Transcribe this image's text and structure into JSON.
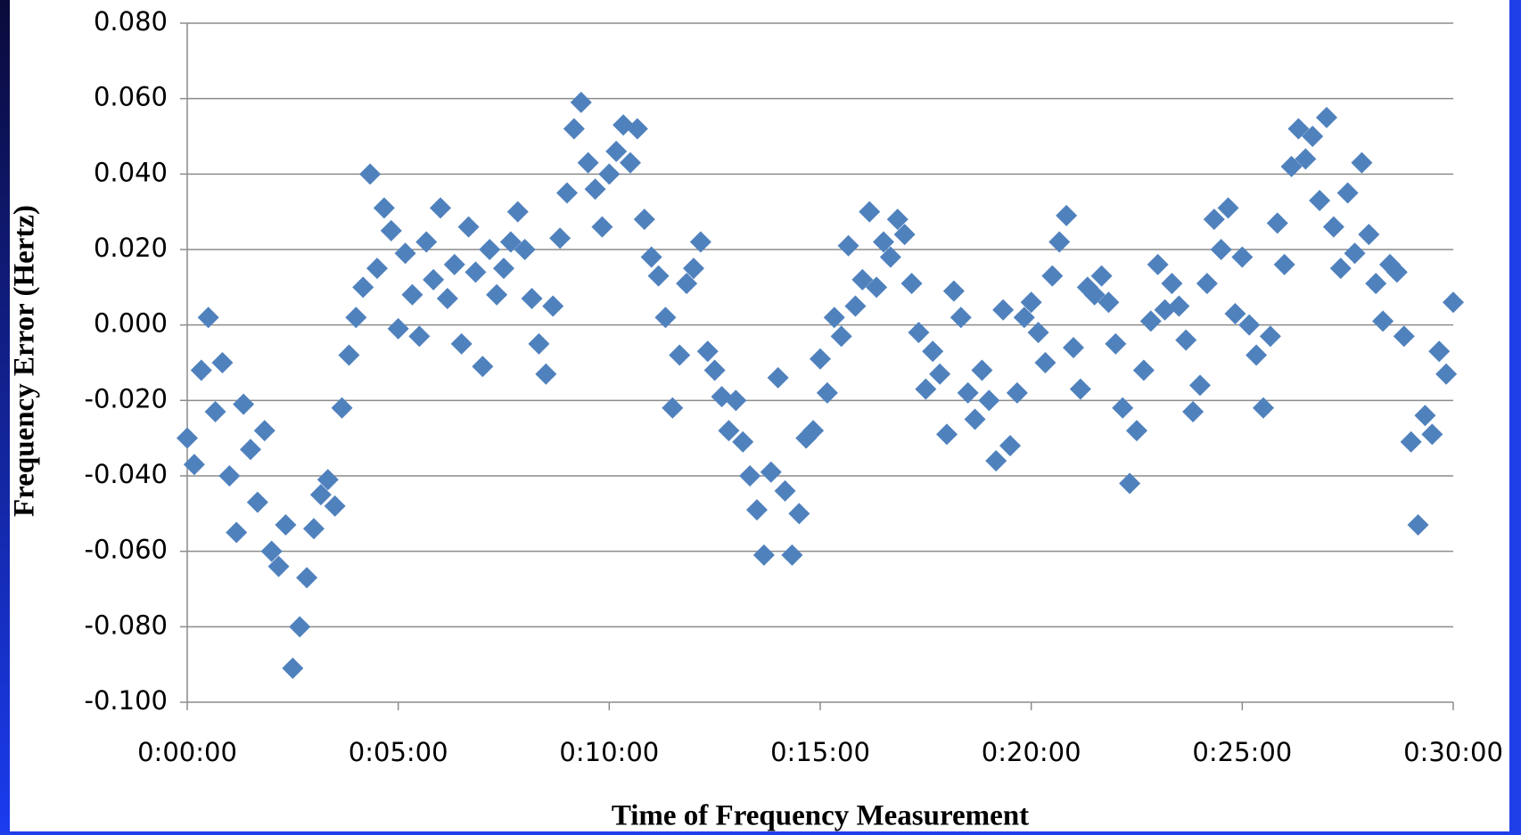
{
  "chart_data": {
    "type": "scatter",
    "xlabel": "Time of Frequency Measurement",
    "ylabel": "Frequency Error (Hertz)",
    "color": "#4f81bd",
    "grid": true,
    "xlim": [
      0,
      1800
    ],
    "xticks": [
      {
        "value": 0,
        "label": "0:00:00"
      },
      {
        "value": 300,
        "label": "0:05:00"
      },
      {
        "value": 600,
        "label": "0:10:00"
      },
      {
        "value": 900,
        "label": "0:15:00"
      },
      {
        "value": 1200,
        "label": "0:20:00"
      },
      {
        "value": 1500,
        "label": "0:25:00"
      },
      {
        "value": 1800,
        "label": "0:30:00"
      }
    ],
    "ylim": [
      -0.1,
      0.08
    ],
    "yticks": [
      {
        "value": -0.1,
        "label": "-0.100"
      },
      {
        "value": -0.08,
        "label": "-0.080"
      },
      {
        "value": -0.06,
        "label": "-0.060"
      },
      {
        "value": -0.04,
        "label": "-0.040"
      },
      {
        "value": -0.02,
        "label": "-0.020"
      },
      {
        "value": 0,
        "label": "0.000"
      },
      {
        "value": 0.02,
        "label": "0.020"
      },
      {
        "value": 0.04,
        "label": "0.040"
      },
      {
        "value": 0.06,
        "label": "0.060"
      },
      {
        "value": 0.08,
        "label": "0.080"
      }
    ],
    "x": [
      0,
      10,
      20,
      30,
      40,
      50,
      60,
      70,
      80,
      90,
      100,
      110,
      120,
      130,
      140,
      150,
      160,
      170,
      180,
      190,
      200,
      210,
      220,
      230,
      240,
      250,
      260,
      270,
      280,
      290,
      300,
      310,
      320,
      330,
      340,
      350,
      360,
      370,
      380,
      390,
      400,
      410,
      420,
      430,
      440,
      450,
      460,
      470,
      480,
      490,
      500,
      510,
      520,
      530,
      540,
      550,
      560,
      570,
      580,
      590,
      600,
      610,
      620,
      630,
      640,
      650,
      660,
      670,
      680,
      690,
      700,
      710,
      720,
      730,
      740,
      750,
      760,
      770,
      780,
      790,
      800,
      810,
      820,
      830,
      840,
      850,
      860,
      870,
      880,
      890,
      900,
      910,
      920,
      930,
      940,
      950,
      960,
      970,
      980,
      990,
      1000,
      1010,
      1020,
      1030,
      1040,
      1050,
      1060,
      1070,
      1080,
      1090,
      1100,
      1110,
      1120,
      1130,
      1140,
      1150,
      1160,
      1170,
      1180,
      1190,
      1200,
      1210,
      1220,
      1230,
      1240,
      1250,
      1260,
      1270,
      1280,
      1290,
      1300,
      1310,
      1320,
      1330,
      1340,
      1350,
      1360,
      1370,
      1380,
      1390,
      1400,
      1410,
      1420,
      1430,
      1440,
      1450,
      1460,
      1470,
      1480,
      1490,
      1500,
      1510,
      1520,
      1530,
      1540,
      1550,
      1560,
      1570,
      1580,
      1590,
      1600,
      1610,
      1620,
      1630,
      1640,
      1650,
      1660,
      1670,
      1680,
      1690,
      1700,
      1710,
      1720,
      1730,
      1740,
      1750,
      1760,
      1770,
      1780,
      1790,
      1800
    ],
    "values": [
      -0.03,
      -0.037,
      -0.012,
      0.002,
      -0.023,
      -0.01,
      -0.04,
      -0.055,
      -0.021,
      -0.033,
      -0.047,
      -0.028,
      -0.06,
      -0.064,
      -0.053,
      -0.091,
      -0.08,
      -0.067,
      -0.054,
      -0.045,
      -0.041,
      -0.048,
      -0.022,
      -0.008,
      0.002,
      0.01,
      0.04,
      0.015,
      0.031,
      0.025,
      -0.001,
      0.019,
      0.008,
      -0.003,
      0.022,
      0.012,
      0.031,
      0.007,
      0.016,
      -0.005,
      0.026,
      0.014,
      -0.011,
      0.02,
      0.008,
      0.015,
      0.022,
      0.03,
      0.02,
      0.007,
      -0.005,
      -0.013,
      0.005,
      0.023,
      0.035,
      0.052,
      0.059,
      0.043,
      0.036,
      0.026,
      0.04,
      0.046,
      0.053,
      0.043,
      0.052,
      0.028,
      0.018,
      0.013,
      0.002,
      -0.022,
      -0.008,
      0.011,
      0.015,
      0.022,
      -0.007,
      -0.012,
      -0.019,
      -0.028,
      -0.02,
      -0.031,
      -0.04,
      -0.049,
      -0.061,
      -0.039,
      -0.014,
      -0.044,
      -0.061,
      -0.05,
      -0.03,
      -0.028,
      -0.009,
      -0.018,
      0.002,
      -0.003,
      0.021,
      0.005,
      0.012,
      0.03,
      0.01,
      0.022,
      0.018,
      0.028,
      0.024,
      0.011,
      -0.002,
      -0.017,
      -0.007,
      -0.013,
      -0.029,
      0.009,
      0.002,
      -0.018,
      -0.025,
      -0.012,
      -0.02,
      -0.036,
      0.004,
      -0.032,
      -0.018,
      0.002,
      0.006,
      -0.002,
      -0.01,
      0.013,
      0.022,
      0.029,
      -0.006,
      -0.017,
      0.01,
      0.008,
      0.013,
      0.006,
      -0.005,
      -0.022,
      -0.042,
      -0.028,
      -0.012,
      0.001,
      0.016,
      0.004,
      0.011,
      0.005,
      -0.004,
      -0.023,
      -0.016,
      0.011,
      0.028,
      0.02,
      0.031,
      0.003,
      0.018,
      0,
      -0.008,
      -0.022,
      -0.003,
      0.027,
      0.016,
      0.042,
      0.052,
      0.044,
      0.05,
      0.033,
      0.055,
      0.026,
      0.015,
      0.035,
      0.019,
      0.043,
      0.024,
      0.011,
      0.001,
      0.016,
      0.014,
      -0.003,
      -0.031,
      -0.053,
      -0.024,
      -0.029,
      -0.007,
      -0.013,
      0.006
    ]
  }
}
